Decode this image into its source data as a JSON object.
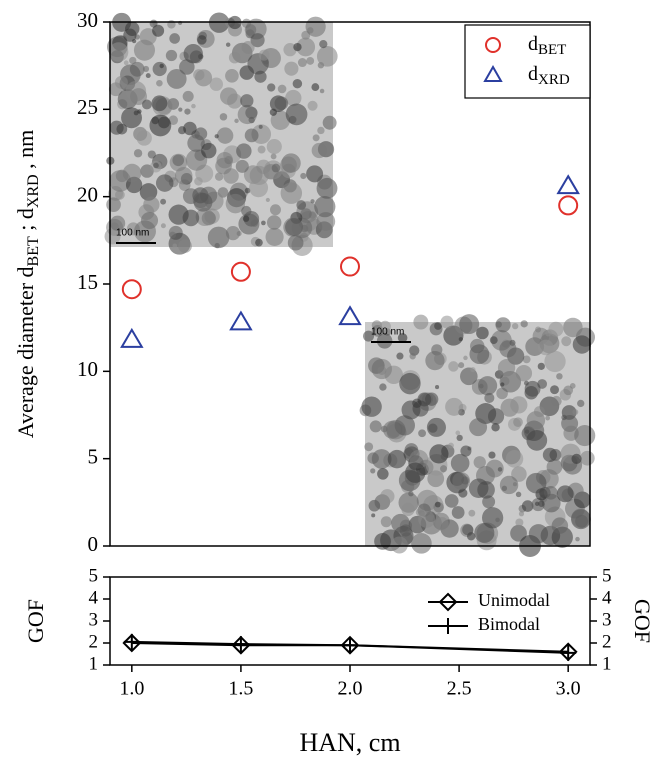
{
  "chart_data": [
    {
      "type": "scatter",
      "y_label_parts": [
        "Average diameter d",
        "BET",
        " ; d",
        "XRD",
        " , nm"
      ],
      "x": [
        1.0,
        1.5,
        2.0,
        3.0
      ],
      "series": [
        {
          "name": "d",
          "name_subscript": "BET",
          "color": "#e0312b",
          "marker": "circle",
          "values": [
            14.7,
            15.7,
            16.0,
            19.5
          ]
        },
        {
          "name": "d",
          "name_subscript": "XRD",
          "color": "#2b3fa0",
          "marker": "triangle",
          "values": [
            11.8,
            12.8,
            13.1,
            20.6
          ]
        }
      ],
      "xlim": [
        0.9,
        3.1
      ],
      "ylim": [
        0,
        30
      ],
      "yticks": [
        0,
        5,
        10,
        15,
        20,
        25,
        30
      ],
      "legend": "upper right",
      "insets": [
        {
          "scale_bar": "100 nm"
        },
        {
          "scale_bar": "100 nm"
        }
      ]
    },
    {
      "type": "line",
      "x_label": "HAN, cm",
      "y_label": "GOF",
      "y2_label": "GOF",
      "x": [
        1.0,
        1.5,
        2.0,
        3.0
      ],
      "series": [
        {
          "name": "Unimodal",
          "color": "#000000",
          "marker": "diamond",
          "values": [
            2.0,
            1.9,
            1.9,
            1.6
          ]
        },
        {
          "name": "Bimodal",
          "color": "#000000",
          "marker": "plus",
          "values": [
            2.05,
            1.95,
            1.9,
            1.55
          ]
        }
      ],
      "xlim": [
        0.9,
        3.1
      ],
      "xticks": [
        {
          "value": 1.0,
          "label": "1.0"
        },
        {
          "value": 1.5,
          "label": "1.5"
        },
        {
          "value": 2.0,
          "label": "2.0"
        },
        {
          "value": 2.5,
          "label": "2.5"
        },
        {
          "value": 3.0,
          "label": "3.0"
        }
      ],
      "ylim": [
        1,
        5
      ],
      "yticks": [
        1,
        2,
        3,
        4,
        5
      ],
      "y2lim": [
        1,
        5
      ],
      "y2ticks": [
        1,
        2,
        3,
        4,
        5
      ],
      "legend": "upper right"
    }
  ]
}
